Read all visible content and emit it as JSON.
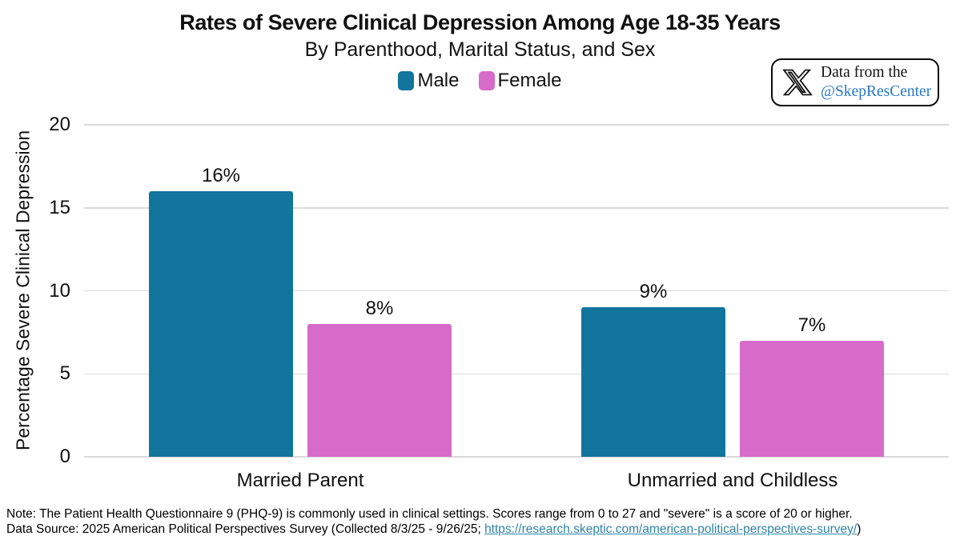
{
  "title": "Rates of Severe Clinical Depression Among Age 18-35 Years",
  "subtitle": "By Parenthood, Marital Status, and Sex",
  "badge": {
    "icon": "x-logo",
    "line1": "Data from the",
    "line2": "@SkepResCenter",
    "handle_color": "#2777c5"
  },
  "chart_data": {
    "type": "bar",
    "categories": [
      "Married Parent",
      "Unmarried and Childless"
    ],
    "series": [
      {
        "name": "Male",
        "color": "#11759e",
        "values": [
          16,
          9
        ]
      },
      {
        "name": "Female",
        "color": "#d76bca",
        "values": [
          8,
          7
        ]
      }
    ],
    "value_suffix": "%",
    "ylabel": "Percentage Severe Clinical Depression",
    "ylim": [
      0,
      20
    ],
    "yticks": [
      0,
      5,
      10,
      15,
      20
    ],
    "grid": "horizontal-major",
    "legend_position": "top-center"
  },
  "footnote": {
    "note": "Note: The Patient Health Questionnaire 9 (PHQ-9) is commonly used in clinical settings. Scores range from 0 to 27 and \"severe\" is a score of 20 or higher.",
    "source_prefix": "Data Source: 2025 American Political Perspectives Survey (Collected 8/3/25 - 9/26/25; ",
    "source_link": "https://research.skeptic.com/american-political-perspectives-survey/",
    "source_suffix": ")",
    "link_color": "#2f84a5"
  }
}
